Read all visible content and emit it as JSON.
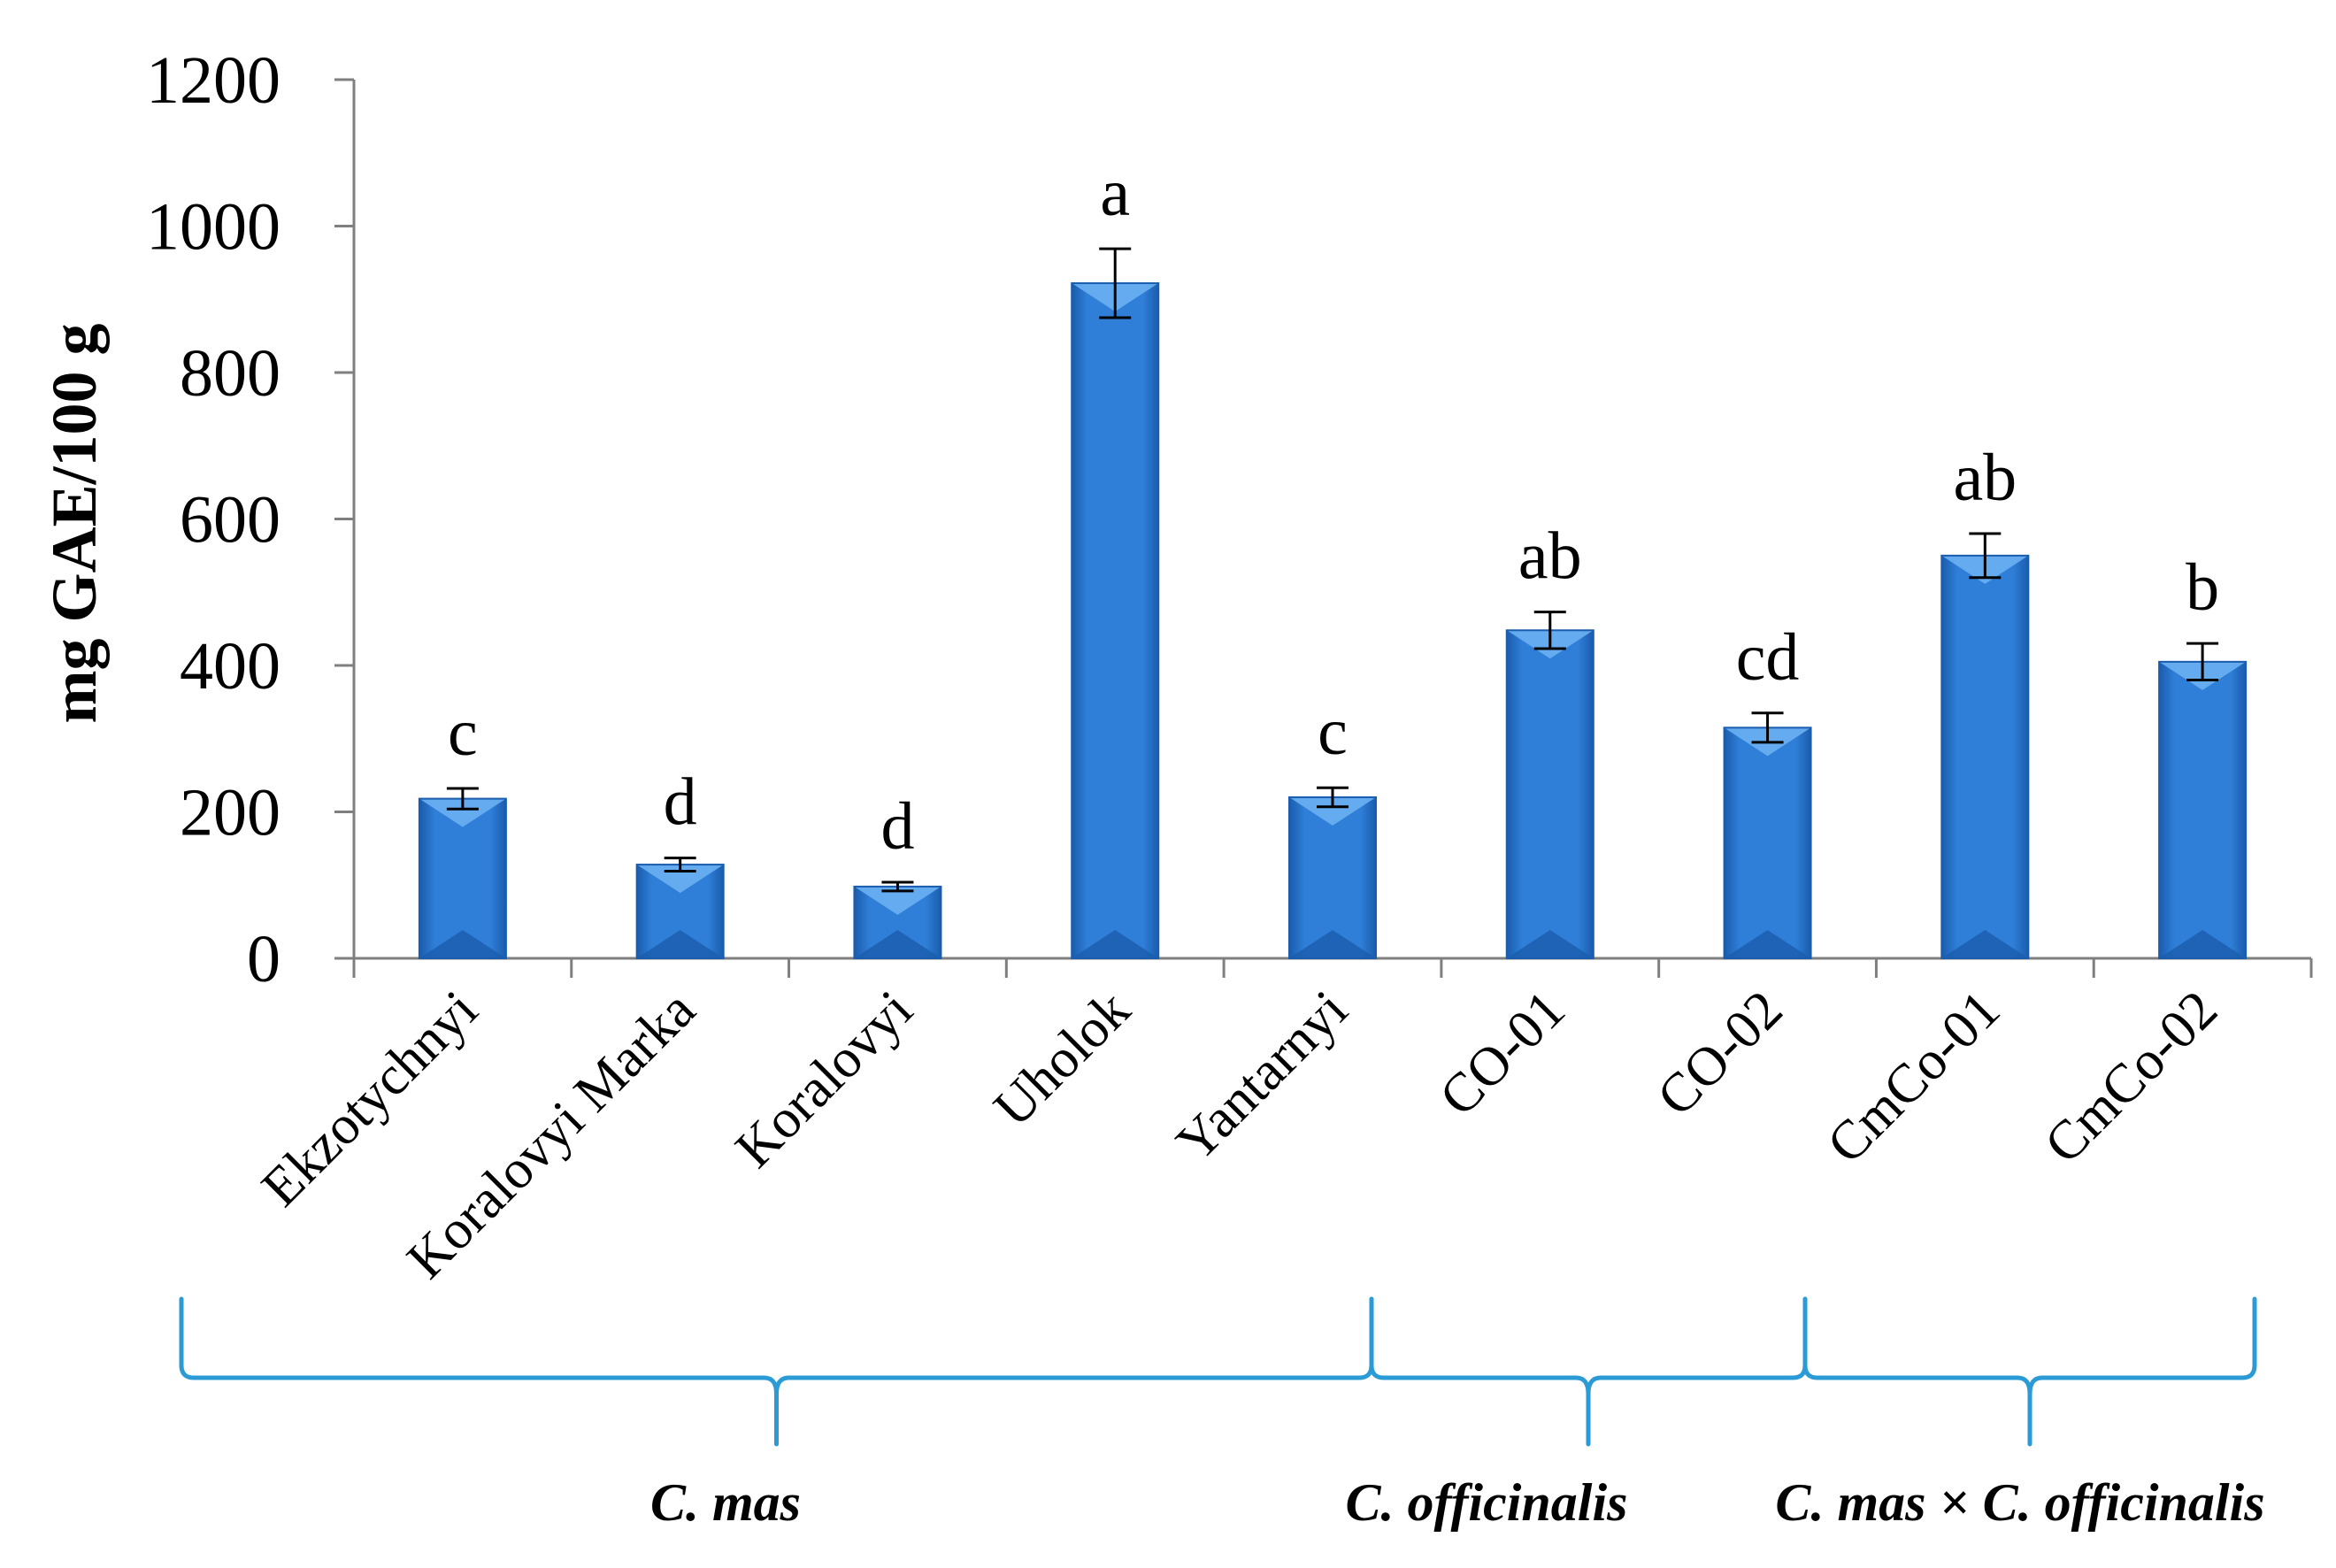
{
  "chart_data": {
    "type": "bar",
    "ylabel": "mg GAE/100 g",
    "xlabel": "",
    "ylim": [
      0,
      1200
    ],
    "yticks": [
      0,
      200,
      400,
      600,
      800,
      1000,
      1200
    ],
    "grid": false,
    "categories": [
      "Ekzotychnyi",
      "Koralovyi Marka",
      "Koralovyi",
      "Uholok",
      "Yantarnyi",
      "CO-01",
      "CO-02",
      "CmCo-01",
      "CmCo-02"
    ],
    "values": [
      218,
      128,
      98,
      922,
      220,
      448,
      315,
      550,
      405
    ],
    "errors": [
      14,
      9,
      6,
      47,
      13,
      25,
      20,
      30,
      25
    ],
    "significance": [
      "c",
      "d",
      "d",
      "a",
      "c",
      "ab",
      "cd",
      "ab",
      "b"
    ],
    "groups": [
      {
        "label": "C. mas",
        "from": 0,
        "to": 4
      },
      {
        "label": "C. officinalis",
        "from": 5,
        "to": 6
      },
      {
        "label": "C. mas × C. officinalis",
        "from": 7,
        "to": 8
      }
    ],
    "colors": {
      "bar": "#2f7fd8",
      "bar_dark": "#1a5cad",
      "bar_light": "#6ab0f2",
      "brace": "#2b9bd6",
      "axis": "#7f7f7f"
    }
  }
}
